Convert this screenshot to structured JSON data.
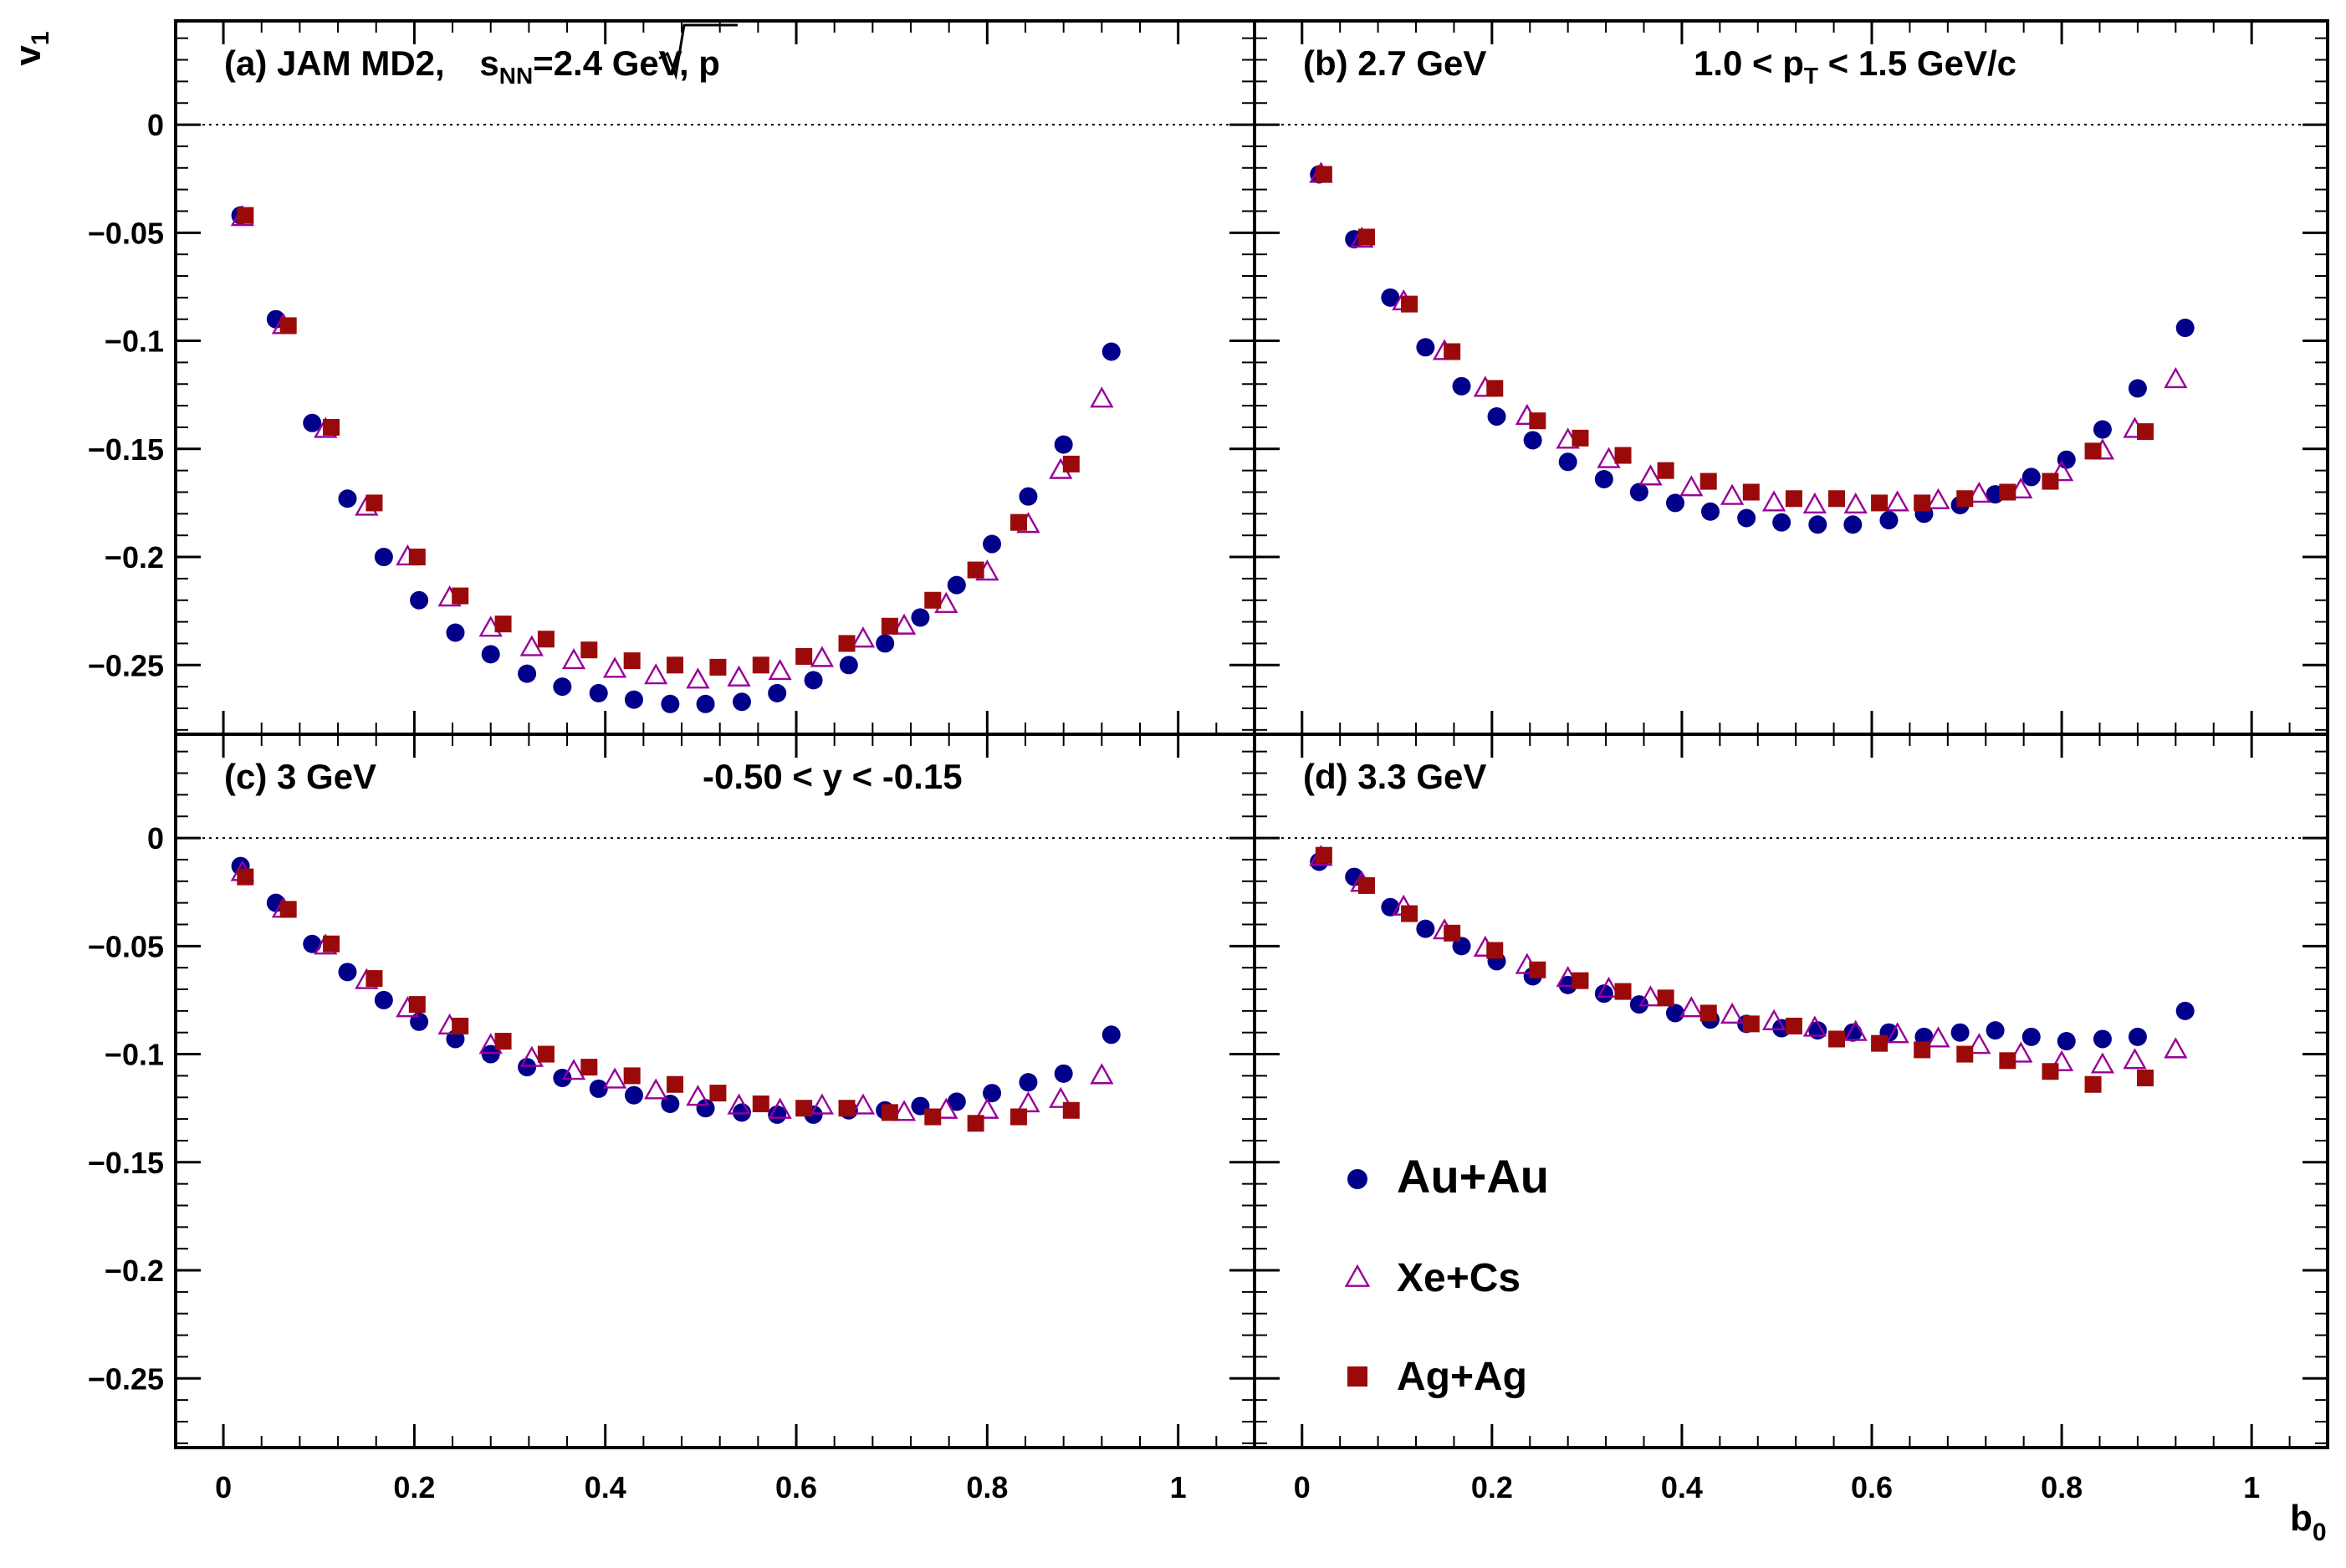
{
  "figure": {
    "y_axis_label": "v",
    "y_axis_label_sub": "1",
    "x_axis_label": "b",
    "x_axis_label_sub": "0"
  },
  "legend": [
    {
      "name": "Au+Au",
      "marker": "circle",
      "color": "#00008b"
    },
    {
      "name": "Xe+Cs",
      "marker": "open-triangle",
      "color": "#990099"
    },
    {
      "name": "Ag+Ag",
      "marker": "square",
      "color": "#9b0a0a"
    }
  ],
  "chart_data": [
    {
      "type": "scatter",
      "panel": "a",
      "title_parts": [
        "(a) JAM MD2, ",
        "s",
        "NN",
        "=2.4 GeV, p"
      ],
      "annotation": "",
      "xlabel": "b0",
      "ylabel": "v1",
      "xlim": [
        -0.05,
        1.08
      ],
      "ylim": [
        -0.282,
        0.048
      ],
      "x_ticks": [
        0,
        0.2,
        0.4,
        0.6,
        0.8,
        1
      ],
      "x_tick_labels": [
        "0",
        "0.2",
        "0.4",
        "0.6",
        "0.8",
        "1"
      ],
      "y_ticks": [
        0,
        -0.05,
        -0.1,
        -0.15,
        -0.2,
        -0.25
      ],
      "y_tick_labels": [
        "0",
        "−0.05",
        "−0.1",
        "−0.15",
        "−0.2",
        "−0.25"
      ],
      "series": [
        {
          "name": "Au+Au",
          "x": [
            0.018,
            0.055,
            0.093,
            0.13,
            0.168,
            0.205,
            0.243,
            0.28,
            0.318,
            0.355,
            0.393,
            0.43,
            0.468,
            0.505,
            0.543,
            0.58,
            0.618,
            0.655,
            0.693,
            0.73,
            0.768,
            0.805,
            0.843,
            0.88,
            0.93
          ],
          "y": [
            -0.042,
            -0.09,
            -0.138,
            -0.173,
            -0.2,
            -0.22,
            -0.235,
            -0.245,
            -0.254,
            -0.26,
            -0.263,
            -0.266,
            -0.268,
            -0.268,
            -0.267,
            -0.263,
            -0.257,
            -0.25,
            -0.24,
            -0.228,
            -0.213,
            -0.194,
            -0.172,
            -0.148,
            -0.105
          ]
        },
        {
          "name": "Xe+Cs",
          "x": [
            0.02,
            0.063,
            0.107,
            0.15,
            0.193,
            0.237,
            0.28,
            0.323,
            0.367,
            0.41,
            0.453,
            0.497,
            0.54,
            0.583,
            0.627,
            0.67,
            0.713,
            0.757,
            0.8,
            0.843,
            0.877,
            0.92
          ],
          "y": [
            -0.043,
            -0.093,
            -0.141,
            -0.177,
            -0.2,
            -0.219,
            -0.233,
            -0.242,
            -0.248,
            -0.252,
            -0.255,
            -0.257,
            -0.256,
            -0.253,
            -0.247,
            -0.238,
            -0.232,
            -0.222,
            -0.207,
            -0.185,
            -0.16,
            -0.127
          ]
        },
        {
          "name": "Ag+Ag",
          "x": [
            0.023,
            0.068,
            0.113,
            0.158,
            0.203,
            0.248,
            0.293,
            0.338,
            0.383,
            0.428,
            0.473,
            0.518,
            0.563,
            0.608,
            0.653,
            0.698,
            0.743,
            0.788,
            0.833,
            0.888
          ],
          "y": [
            -0.042,
            -0.093,
            -0.14,
            -0.175,
            -0.2,
            -0.218,
            -0.231,
            -0.238,
            -0.243,
            -0.248,
            -0.25,
            -0.251,
            -0.25,
            -0.246,
            -0.24,
            -0.232,
            -0.22,
            -0.206,
            -0.184,
            -0.157
          ]
        }
      ]
    },
    {
      "type": "scatter",
      "panel": "b",
      "title_parts": [
        "(b) 2.7 GeV"
      ],
      "annotation_parts": [
        "1.0 < p",
        "T",
        " < 1.5 GeV/c"
      ],
      "xlabel": "b0",
      "ylabel": "v1",
      "xlim": [
        -0.05,
        1.08
      ],
      "ylim": [
        -0.282,
        0.048
      ],
      "x_ticks": [
        0,
        0.2,
        0.4,
        0.6,
        0.8,
        1
      ],
      "x_tick_labels": [
        "0",
        "0.2",
        "0.4",
        "0.6",
        "0.8",
        "1"
      ],
      "y_ticks": [
        0,
        -0.05,
        -0.1,
        -0.15,
        -0.2,
        -0.25
      ],
      "series": [
        {
          "name": "Au+Au",
          "x": [
            0.018,
            0.055,
            0.093,
            0.13,
            0.168,
            0.205,
            0.243,
            0.28,
            0.318,
            0.355,
            0.393,
            0.43,
            0.468,
            0.505,
            0.543,
            0.58,
            0.618,
            0.655,
            0.693,
            0.73,
            0.768,
            0.805,
            0.843,
            0.88,
            0.93
          ],
          "y": [
            -0.023,
            -0.053,
            -0.08,
            -0.103,
            -0.121,
            -0.135,
            -0.146,
            -0.156,
            -0.164,
            -0.17,
            -0.175,
            -0.179,
            -0.182,
            -0.184,
            -0.185,
            -0.185,
            -0.183,
            -0.18,
            -0.176,
            -0.171,
            -0.163,
            -0.155,
            -0.141,
            -0.122,
            -0.094
          ]
        },
        {
          "name": "Xe+Cs",
          "x": [
            0.02,
            0.063,
            0.107,
            0.15,
            0.193,
            0.237,
            0.28,
            0.323,
            0.367,
            0.41,
            0.453,
            0.497,
            0.54,
            0.583,
            0.627,
            0.67,
            0.713,
            0.757,
            0.8,
            0.843,
            0.877,
            0.92
          ],
          "y": [
            -0.023,
            -0.053,
            -0.082,
            -0.105,
            -0.122,
            -0.135,
            -0.146,
            -0.155,
            -0.163,
            -0.168,
            -0.172,
            -0.175,
            -0.176,
            -0.176,
            -0.175,
            -0.174,
            -0.171,
            -0.169,
            -0.161,
            -0.151,
            -0.141,
            -0.118
          ]
        },
        {
          "name": "Ag+Ag",
          "x": [
            0.023,
            0.068,
            0.113,
            0.158,
            0.203,
            0.248,
            0.293,
            0.338,
            0.383,
            0.428,
            0.473,
            0.518,
            0.563,
            0.608,
            0.653,
            0.698,
            0.743,
            0.788,
            0.833,
            0.888
          ],
          "y": [
            -0.023,
            -0.052,
            -0.083,
            -0.105,
            -0.122,
            -0.137,
            -0.145,
            -0.153,
            -0.16,
            -0.165,
            -0.17,
            -0.173,
            -0.173,
            -0.175,
            -0.175,
            -0.173,
            -0.17,
            -0.165,
            -0.151,
            -0.142
          ]
        }
      ]
    },
    {
      "type": "scatter",
      "panel": "c",
      "title_parts": [
        "(c) 3 GeV"
      ],
      "annotation_parts": [
        "-0.50 < y < -0.15"
      ],
      "xlabel": "b0",
      "ylabel": "v1",
      "xlim": [
        -0.05,
        1.08
      ],
      "ylim": [
        -0.282,
        0.048
      ],
      "x_ticks": [
        0,
        0.2,
        0.4,
        0.6,
        0.8,
        1
      ],
      "x_tick_labels": [
        "0",
        "0.2",
        "0.4",
        "0.6",
        "0.8",
        "1"
      ],
      "y_ticks": [
        0,
        -0.05,
        -0.1,
        -0.15,
        -0.2,
        -0.25
      ],
      "y_tick_labels": [
        "0",
        "−0.05",
        "−0.1",
        "−0.15",
        "−0.2",
        "−0.25"
      ],
      "series": [
        {
          "name": "Au+Au",
          "x": [
            0.018,
            0.055,
            0.093,
            0.13,
            0.168,
            0.205,
            0.243,
            0.28,
            0.318,
            0.355,
            0.393,
            0.43,
            0.468,
            0.505,
            0.543,
            0.58,
            0.618,
            0.655,
            0.693,
            0.73,
            0.768,
            0.805,
            0.843,
            0.88,
            0.93
          ],
          "y": [
            -0.013,
            -0.03,
            -0.049,
            -0.062,
            -0.075,
            -0.085,
            -0.093,
            -0.1,
            -0.106,
            -0.111,
            -0.116,
            -0.119,
            -0.123,
            -0.125,
            -0.127,
            -0.128,
            -0.128,
            -0.126,
            -0.126,
            -0.124,
            -0.122,
            -0.118,
            -0.113,
            -0.109,
            -0.091
          ]
        },
        {
          "name": "Xe+Cs",
          "x": [
            0.02,
            0.063,
            0.107,
            0.15,
            0.193,
            0.237,
            0.28,
            0.323,
            0.367,
            0.41,
            0.453,
            0.497,
            0.54,
            0.583,
            0.627,
            0.67,
            0.713,
            0.757,
            0.8,
            0.843,
            0.877,
            0.92
          ],
          "y": [
            -0.016,
            -0.033,
            -0.05,
            -0.066,
            -0.079,
            -0.087,
            -0.096,
            -0.102,
            -0.108,
            -0.112,
            -0.117,
            -0.12,
            -0.124,
            -0.126,
            -0.124,
            -0.124,
            -0.127,
            -0.126,
            -0.126,
            -0.123,
            -0.121,
            -0.11
          ]
        },
        {
          "name": "Ag+Ag",
          "x": [
            0.023,
            0.068,
            0.113,
            0.158,
            0.203,
            0.248,
            0.293,
            0.338,
            0.383,
            0.428,
            0.473,
            0.518,
            0.563,
            0.608,
            0.653,
            0.698,
            0.743,
            0.788,
            0.833,
            0.888
          ],
          "y": [
            -0.018,
            -0.033,
            -0.049,
            -0.065,
            -0.077,
            -0.087,
            -0.094,
            -0.1,
            -0.106,
            -0.11,
            -0.114,
            -0.118,
            -0.123,
            -0.125,
            -0.125,
            -0.127,
            -0.129,
            -0.132,
            -0.129,
            -0.126
          ]
        }
      ]
    },
    {
      "type": "scatter",
      "panel": "d",
      "title_parts": [
        "(d) 3.3 GeV"
      ],
      "annotation_parts": [],
      "xlabel": "b0",
      "ylabel": "v1",
      "xlim": [
        -0.05,
        1.08
      ],
      "ylim": [
        -0.282,
        0.048
      ],
      "x_ticks": [
        0,
        0.2,
        0.4,
        0.6,
        0.8,
        1
      ],
      "x_tick_labels": [
        "0",
        "0.2",
        "0.4",
        "0.6",
        "0.8",
        "1"
      ],
      "y_ticks": [
        0,
        -0.05,
        -0.1,
        -0.15,
        -0.2,
        -0.25
      ],
      "series": [
        {
          "name": "Au+Au",
          "x": [
            0.018,
            0.055,
            0.093,
            0.13,
            0.168,
            0.205,
            0.243,
            0.28,
            0.318,
            0.355,
            0.393,
            0.43,
            0.468,
            0.505,
            0.543,
            0.58,
            0.618,
            0.655,
            0.693,
            0.73,
            0.768,
            0.805,
            0.843,
            0.88,
            0.93
          ],
          "y": [
            -0.011,
            -0.018,
            -0.032,
            -0.042,
            -0.05,
            -0.057,
            -0.064,
            -0.068,
            -0.072,
            -0.077,
            -0.081,
            -0.084,
            -0.086,
            -0.088,
            -0.089,
            -0.09,
            -0.09,
            -0.092,
            -0.09,
            -0.089,
            -0.092,
            -0.094,
            -0.093,
            -0.092,
            -0.08
          ]
        },
        {
          "name": "Xe+Cs",
          "x": [
            0.02,
            0.063,
            0.107,
            0.15,
            0.193,
            0.237,
            0.28,
            0.323,
            0.367,
            0.41,
            0.453,
            0.497,
            0.54,
            0.583,
            0.627,
            0.67,
            0.713,
            0.757,
            0.8,
            0.843,
            0.877,
            0.92
          ],
          "y": [
            -0.009,
            -0.021,
            -0.032,
            -0.043,
            -0.051,
            -0.059,
            -0.065,
            -0.07,
            -0.074,
            -0.079,
            -0.082,
            -0.085,
            -0.088,
            -0.09,
            -0.091,
            -0.093,
            -0.096,
            -0.1,
            -0.104,
            -0.105,
            -0.103,
            -0.098
          ]
        },
        {
          "name": "Ag+Ag",
          "x": [
            0.023,
            0.068,
            0.113,
            0.158,
            0.203,
            0.248,
            0.293,
            0.338,
            0.383,
            0.428,
            0.473,
            0.518,
            0.563,
            0.608,
            0.653,
            0.698,
            0.743,
            0.788,
            0.833,
            0.888
          ],
          "y": [
            -0.008,
            -0.022,
            -0.035,
            -0.044,
            -0.052,
            -0.061,
            -0.066,
            -0.071,
            -0.074,
            -0.081,
            -0.086,
            -0.087,
            -0.093,
            -0.095,
            -0.098,
            -0.1,
            -0.103,
            -0.108,
            -0.114,
            -0.111
          ]
        }
      ]
    }
  ]
}
